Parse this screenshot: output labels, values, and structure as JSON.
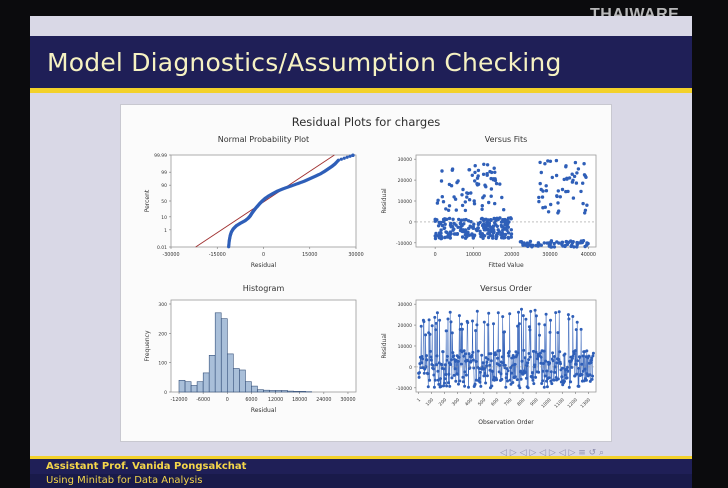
{
  "logo": {
    "text": "THAIWARE"
  },
  "slide": {
    "title": "Model Diagnostics/Assumption Checking",
    "footer_name": "Assistant Prof. Vanida Pongsakchat",
    "footer_course": "Using Minitab for Data Analysis",
    "nav_symbols": "◁ ▷ ◁ ▷ ◁ ▷ ◁ ▷ ≡ ↺ ⌕"
  },
  "colors": {
    "point": "#2f5fb8",
    "bar_fill": "#a9bfd9",
    "bar_stroke": "#35507a",
    "ref_line": "#a03030",
    "frame": "#9a9a9a"
  },
  "chart_data": [
    {
      "type": "scatter",
      "figure_title": "Residual Plots for charges",
      "title": "Normal Probability Plot",
      "xlabel": "Residual",
      "ylabel": "Percent",
      "xlim": [
        -30000,
        30000
      ],
      "x_ticks": [
        "-30000",
        "-15000",
        "0",
        "15000",
        "30000"
      ],
      "y_ticks": [
        "0.01",
        "1",
        "10",
        "50",
        "90",
        "99",
        "99.99"
      ],
      "y_scale": "normal-probability",
      "reference_line": {
        "from": [
          -22000,
          0.01
        ],
        "to": [
          23000,
          99.99
        ]
      },
      "series": [
        {
          "z": [
            -3.7,
            -3.2,
            -2.8,
            -2.5,
            -2.25,
            -2.0,
            -1.8,
            -1.6,
            -1.4,
            -1.2,
            -1.0,
            -0.8,
            -0.6,
            -0.4,
            -0.2,
            0.0,
            0.2,
            0.4,
            0.6,
            0.8,
            1.0,
            1.2,
            1.4,
            1.6,
            1.8,
            2.0,
            2.2,
            2.4,
            2.6,
            2.8,
            3.0,
            3.3,
            3.7
          ],
          "x": [
            -11300,
            -11100,
            -10800,
            -10400,
            -9800,
            -8800,
            -7500,
            -6000,
            -5000,
            -4300,
            -3800,
            -3200,
            -2600,
            -1900,
            -1200,
            -400,
            500,
            1600,
            3000,
            4500,
            6500,
            8800,
            11000,
            13200,
            15000,
            16800,
            18500,
            19800,
            21000,
            22200,
            23200,
            24300,
            29000
          ]
        }
      ]
    },
    {
      "type": "scatter",
      "title": "Versus Fits",
      "xlabel": "Fitted Value",
      "ylabel": "Residual",
      "xlim": [
        -5000,
        42000
      ],
      "ylim": [
        -12000,
        32000
      ],
      "x_ticks": [
        "0",
        "10000",
        "20000",
        "30000",
        "40000"
      ],
      "y_ticks": [
        "-10000",
        "0",
        "10000",
        "20000",
        "30000"
      ],
      "reference_line_y": 0,
      "clusters": [
        {
          "x_range": [
            0,
            20000
          ],
          "y_range": [
            -8000,
            2000
          ],
          "n": 220
        },
        {
          "x_range": [
            0,
            18000
          ],
          "y_range": [
            5000,
            28000
          ],
          "n": 70
        },
        {
          "x_range": [
            22000,
            40000
          ],
          "y_range": [
            -12000,
            -9000
          ],
          "n": 70
        },
        {
          "x_range": [
            27000,
            40000
          ],
          "y_range": [
            4000,
            30000
          ],
          "n": 55
        }
      ]
    },
    {
      "type": "bar",
      "title": "Histogram",
      "xlabel": "Residual",
      "ylabel": "Frequency",
      "bin_start": -12000,
      "bin_width": 1500,
      "x_ticks": [
        "-12000",
        "-6000",
        "0",
        "6000",
        "12000",
        "18000",
        "24000",
        "30000"
      ],
      "x_tick_values": [
        -12000,
        -6000,
        0,
        6000,
        12000,
        18000,
        24000,
        30000
      ],
      "y_ticks": [
        "0",
        "100",
        "200",
        "300"
      ],
      "ylim": [
        0,
        300
      ],
      "values": [
        40,
        35,
        22,
        35,
        65,
        125,
        270,
        250,
        130,
        80,
        75,
        35,
        20,
        8,
        6,
        5,
        5,
        5,
        3,
        2,
        2,
        1
      ]
    },
    {
      "type": "line",
      "title": "Versus Order",
      "xlabel": "Observation Order",
      "ylabel": "Residual",
      "xlim": [
        1,
        1338
      ],
      "ylim": [
        -12000,
        32000
      ],
      "x_ticks": [
        "1",
        "100",
        "200",
        "300",
        "400",
        "500",
        "600",
        "700",
        "800",
        "900",
        "1000",
        "1100",
        "1200",
        "1300"
      ],
      "x_tick_values": [
        1,
        100,
        200,
        300,
        400,
        500,
        600,
        700,
        800,
        900,
        1000,
        1100,
        1200,
        1300
      ],
      "y_ticks": [
        "-10000",
        "0",
        "10000",
        "20000",
        "30000"
      ],
      "n_points": 1338,
      "baseline_range": [
        -10000,
        8000
      ],
      "spike_range": [
        15000,
        28000
      ]
    }
  ]
}
